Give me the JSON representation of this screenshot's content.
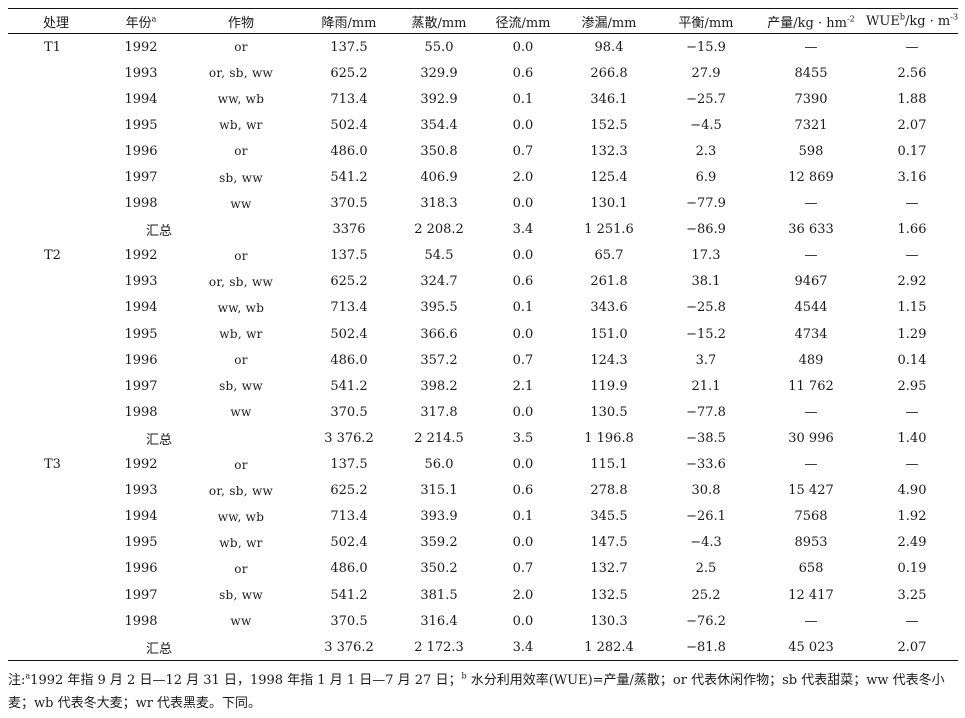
{
  "headers": {
    "treatment": "处理",
    "year": "年份",
    "year_sup": "a",
    "crop": "作物",
    "rain": "降雨/mm",
    "et": "蒸散/mm",
    "runoff": "径流/mm",
    "leakage": "渗漏/mm",
    "balance": "平衡/mm",
    "yield": "产量/kg · hm",
    "yield_sup": "-2",
    "wue_pre": "WUE",
    "wue_sup1": "b",
    "wue_mid": "/kg · m",
    "wue_sup2": "-3"
  },
  "rows": [
    {
      "treat": "T1",
      "year": "1992",
      "crop": "or",
      "rain": "137.5",
      "et": "55.0",
      "runoff": "0.0",
      "leak": "98.4",
      "bal": "−15.9",
      "yield": "—",
      "wue": "—"
    },
    {
      "treat": "",
      "year": "1993",
      "crop": "or, sb, ww",
      "rain": "625.2",
      "et": "329.9",
      "runoff": "0.6",
      "leak": "266.8",
      "bal": "27.9",
      "yield": "8455",
      "wue": "2.56"
    },
    {
      "treat": "",
      "year": "1994",
      "crop": "ww, wb",
      "rain": "713.4",
      "et": "392.9",
      "runoff": "0.1",
      "leak": "346.1",
      "bal": "−25.7",
      "yield": "7390",
      "wue": "1.88"
    },
    {
      "treat": "",
      "year": "1995",
      "crop": "wb, wr",
      "rain": "502.4",
      "et": "354.4",
      "runoff": "0.0",
      "leak": "152.5",
      "bal": "−4.5",
      "yield": "7321",
      "wue": "2.07"
    },
    {
      "treat": "",
      "year": "1996",
      "crop": "or",
      "rain": "486.0",
      "et": "350.8",
      "runoff": "0.7",
      "leak": "132.3",
      "bal": "2.3",
      "yield": "598",
      "wue": "0.17"
    },
    {
      "treat": "",
      "year": "1997",
      "crop": "sb, ww",
      "rain": "541.2",
      "et": "406.9",
      "runoff": "2.0",
      "leak": "125.4",
      "bal": "6.9",
      "yield": "12 869",
      "wue": "3.16"
    },
    {
      "treat": "",
      "year": "1998",
      "crop": "ww",
      "rain": "370.5",
      "et": "318.3",
      "runoff": "0.0",
      "leak": "130.1",
      "bal": "−77.9",
      "yield": "—",
      "wue": "—"
    },
    {
      "treat": "",
      "year": "汇总",
      "crop": "",
      "rain": "3376",
      "et": "2 208.2",
      "runoff": "3.4",
      "leak": "1 251.6",
      "bal": "−86.9",
      "yield": "36 633",
      "wue": "1.66",
      "summary": true
    },
    {
      "treat": "T2",
      "year": "1992",
      "crop": "or",
      "rain": "137.5",
      "et": "54.5",
      "runoff": "0.0",
      "leak": "65.7",
      "bal": "17.3",
      "yield": "—",
      "wue": "—"
    },
    {
      "treat": "",
      "year": "1993",
      "crop": "or, sb, ww",
      "rain": "625.2",
      "et": "324.7",
      "runoff": "0.6",
      "leak": "261.8",
      "bal": "38.1",
      "yield": "9467",
      "wue": "2.92"
    },
    {
      "treat": "",
      "year": "1994",
      "crop": "ww, wb",
      "rain": "713.4",
      "et": "395.5",
      "runoff": "0.1",
      "leak": "343.6",
      "bal": "−25.8",
      "yield": "4544",
      "wue": "1.15"
    },
    {
      "treat": "",
      "year": "1995",
      "crop": "wb, wr",
      "rain": "502.4",
      "et": "366.6",
      "runoff": "0.0",
      "leak": "151.0",
      "bal": "−15.2",
      "yield": "4734",
      "wue": "1.29"
    },
    {
      "treat": "",
      "year": "1996",
      "crop": "or",
      "rain": "486.0",
      "et": "357.2",
      "runoff": "0.7",
      "leak": "124.3",
      "bal": "3.7",
      "yield": "489",
      "wue": "0.14"
    },
    {
      "treat": "",
      "year": "1997",
      "crop": "sb, ww",
      "rain": "541.2",
      "et": "398.2",
      "runoff": "2.1",
      "leak": "119.9",
      "bal": "21.1",
      "yield": "11 762",
      "wue": "2.95"
    },
    {
      "treat": "",
      "year": "1998",
      "crop": "ww",
      "rain": "370.5",
      "et": "317.8",
      "runoff": "0.0",
      "leak": "130.5",
      "bal": "−77.8",
      "yield": "—",
      "wue": "—"
    },
    {
      "treat": "",
      "year": "汇总",
      "crop": "",
      "rain": "3 376.2",
      "et": "2 214.5",
      "runoff": "3.5",
      "leak": "1 196.8",
      "bal": "−38.5",
      "yield": "30 996",
      "wue": "1.40",
      "summary": true
    },
    {
      "treat": "T3",
      "year": "1992",
      "crop": "or",
      "rain": "137.5",
      "et": "56.0",
      "runoff": "0.0",
      "leak": "115.1",
      "bal": "−33.6",
      "yield": "—",
      "wue": "—"
    },
    {
      "treat": "",
      "year": "1993",
      "crop": "or, sb, ww",
      "rain": "625.2",
      "et": "315.1",
      "runoff": "0.6",
      "leak": "278.8",
      "bal": "30.8",
      "yield": "15 427",
      "wue": "4.90"
    },
    {
      "treat": "",
      "year": "1994",
      "crop": "ww, wb",
      "rain": "713.4",
      "et": "393.9",
      "runoff": "0.1",
      "leak": "345.5",
      "bal": "−26.1",
      "yield": "7568",
      "wue": "1.92"
    },
    {
      "treat": "",
      "year": "1995",
      "crop": "wb, wr",
      "rain": "502.4",
      "et": "359.2",
      "runoff": "0.0",
      "leak": "147.5",
      "bal": "−4.3",
      "yield": "8953",
      "wue": "2.49"
    },
    {
      "treat": "",
      "year": "1996",
      "crop": "or",
      "rain": "486.0",
      "et": "350.2",
      "runoff": "0.7",
      "leak": "132.7",
      "bal": "2.5",
      "yield": "658",
      "wue": "0.19"
    },
    {
      "treat": "",
      "year": "1997",
      "crop": "sb, ww",
      "rain": "541.2",
      "et": "381.5",
      "runoff": "2.0",
      "leak": "132.5",
      "bal": "25.2",
      "yield": "12 417",
      "wue": "3.25"
    },
    {
      "treat": "",
      "year": "1998",
      "crop": "ww",
      "rain": "370.5",
      "et": "316.4",
      "runoff": "0.0",
      "leak": "130.3",
      "bal": "−76.2",
      "yield": "—",
      "wue": "—"
    },
    {
      "treat": "",
      "year": "汇总",
      "crop": "",
      "rain": "3 376.2",
      "et": "2 172.3",
      "runoff": "3.4",
      "leak": "1 282.4",
      "bal": "−81.8",
      "yield": "45 023",
      "wue": "2.07",
      "summary": true
    }
  ],
  "note": {
    "prefix": "注:",
    "sup_a": "a",
    "part1": "1992 年指 9 月 2 日—12 月 31 日，1998 年指 1 月 1 日—7 月 27 日；",
    "sup_b": "b",
    "part2": " 水分利用效率(WUE)=产量/蒸散；or 代表休闲作物；sb 代表甜菜；ww 代表冬小麦；wb 代表冬大麦；wr 代表黑麦。下同。"
  }
}
